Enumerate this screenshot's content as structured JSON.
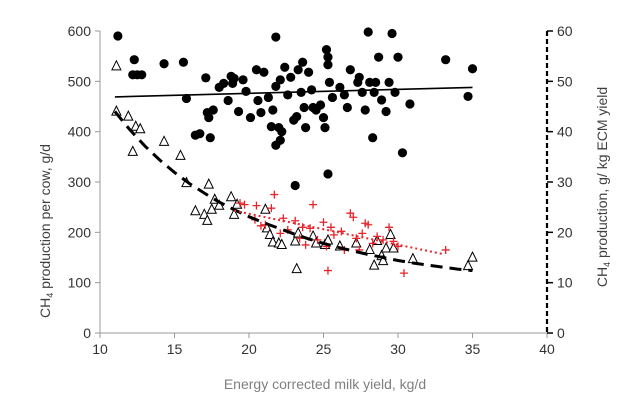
{
  "chart_data": {
    "type": "scatter",
    "xlabel": "Energy corrected milk yield, kg/d",
    "ylabel_left_parts": [
      "CH",
      "4",
      " production  per cow, g/d"
    ],
    "ylabel_right_parts": [
      "CH",
      "4",
      " production, g/ kg ECM yield"
    ],
    "xlim": [
      10,
      40
    ],
    "ylim_left": [
      0,
      600
    ],
    "ylim_right": [
      0,
      60
    ],
    "x_ticks": [
      "10",
      "15",
      "20",
      "25",
      "30",
      "35",
      "40"
    ],
    "y_left_ticks": [
      "0",
      "100",
      "200",
      "300",
      "400",
      "500",
      "600"
    ],
    "y_right_ticks": [
      "0",
      "10",
      "20",
      "30",
      "40",
      "50",
      "60"
    ],
    "grid": false,
    "series": [
      {
        "axis": "left",
        "marker": "filled-circle",
        "color": "#000000",
        "points": [
          [
            11.2,
            590
          ],
          [
            12.3,
            543
          ],
          [
            12.2,
            513
          ],
          [
            12.5,
            513
          ],
          [
            12.8,
            513
          ],
          [
            14.3,
            535
          ],
          [
            15.6,
            538
          ],
          [
            15.8,
            466
          ],
          [
            16.4,
            393
          ],
          [
            16.7,
            396
          ],
          [
            17.1,
            507
          ],
          [
            17.2,
            438
          ],
          [
            17.3,
            428
          ],
          [
            17.4,
            388
          ],
          [
            17.6,
            443
          ],
          [
            18.0,
            488
          ],
          [
            18.3,
            496
          ],
          [
            18.6,
            462
          ],
          [
            18.8,
            510
          ],
          [
            18.9,
            496
          ],
          [
            19.0,
            506
          ],
          [
            19.3,
            440
          ],
          [
            19.6,
            503
          ],
          [
            19.8,
            480
          ],
          [
            20.1,
            428
          ],
          [
            20.5,
            523
          ],
          [
            20.6,
            462
          ],
          [
            20.8,
            438
          ],
          [
            21.0,
            518
          ],
          [
            21.3,
            468
          ],
          [
            21.6,
            443
          ],
          [
            21.5,
            410
          ],
          [
            21.8,
            373
          ],
          [
            21.8,
            588
          ],
          [
            21.8,
            490
          ],
          [
            22.0,
            408
          ],
          [
            22.1,
            383
          ],
          [
            22.2,
            400
          ],
          [
            22.1,
            503
          ],
          [
            22.4,
            528
          ],
          [
            22.6,
            473
          ],
          [
            22.8,
            508
          ],
          [
            23.0,
            423
          ],
          [
            23.1,
            293
          ],
          [
            23.2,
            430
          ],
          [
            23.3,
            523
          ],
          [
            23.5,
            478
          ],
          [
            23.6,
            538
          ],
          [
            23.7,
            448
          ],
          [
            23.8,
            408
          ],
          [
            24.0,
            518
          ],
          [
            24.2,
            483
          ],
          [
            24.3,
            448
          ],
          [
            24.5,
            443
          ],
          [
            24.8,
            453
          ],
          [
            25.0,
            428
          ],
          [
            25.1,
            408
          ],
          [
            25.2,
            563
          ],
          [
            25.3,
            548
          ],
          [
            25.3,
            533
          ],
          [
            25.4,
            498
          ],
          [
            25.6,
            468
          ],
          [
            25.3,
            316
          ],
          [
            26.1,
            488
          ],
          [
            26.4,
            473
          ],
          [
            26.6,
            448
          ],
          [
            26.8,
            523
          ],
          [
            27.3,
            498
          ],
          [
            27.4,
            508
          ],
          [
            27.6,
            478
          ],
          [
            27.8,
            443
          ],
          [
            28.0,
            598
          ],
          [
            28.1,
            498
          ],
          [
            28.3,
            388
          ],
          [
            28.4,
            478
          ],
          [
            28.5,
            498
          ],
          [
            28.7,
            548
          ],
          [
            28.9,
            463
          ],
          [
            29.2,
            440
          ],
          [
            29.4,
            498
          ],
          [
            29.6,
            595
          ],
          [
            29.8,
            478
          ],
          [
            30.0,
            548
          ],
          [
            30.3,
            358
          ],
          [
            30.8,
            455
          ],
          [
            33.2,
            543
          ],
          [
            34.7,
            470
          ],
          [
            35.0,
            525
          ]
        ]
      },
      {
        "axis": "left",
        "type": "line",
        "style": "solid",
        "color": "#000000",
        "points": [
          [
            11,
            469
          ],
          [
            35,
            488
          ]
        ]
      },
      {
        "axis": "right",
        "marker": "open-triangle",
        "color": "#000000",
        "points": [
          [
            11.1,
            53
          ],
          [
            11.1,
            44
          ],
          [
            11.9,
            43
          ],
          [
            12.2,
            36
          ],
          [
            12.4,
            41
          ],
          [
            12.7,
            40.5
          ],
          [
            14.3,
            38
          ],
          [
            15.4,
            35.2
          ],
          [
            15.8,
            29.8
          ],
          [
            16.4,
            24.2
          ],
          [
            17.0,
            23.5
          ],
          [
            17.2,
            22.3
          ],
          [
            17.3,
            29.5
          ],
          [
            17.5,
            24.5
          ],
          [
            17.7,
            26.5
          ],
          [
            18.0,
            25.3
          ],
          [
            18.8,
            27
          ],
          [
            19.0,
            23.5
          ],
          [
            19.2,
            25.5
          ],
          [
            21.1,
            24.5
          ],
          [
            21.2,
            20.8
          ],
          [
            21.4,
            19.5
          ],
          [
            21.6,
            18
          ],
          [
            22.0,
            17.8
          ],
          [
            22.2,
            17.5
          ],
          [
            23.1,
            18.2
          ],
          [
            23.2,
            12.7
          ],
          [
            23.3,
            19.8
          ],
          [
            24.3,
            19.2
          ],
          [
            24.5,
            17.8
          ],
          [
            25.1,
            17.5
          ],
          [
            25.3,
            18.4
          ],
          [
            26.1,
            17.2
          ],
          [
            27.2,
            17.8
          ],
          [
            28.1,
            16.5
          ],
          [
            28.4,
            13.4
          ],
          [
            28.6,
            18.3
          ],
          [
            28.9,
            15.3
          ],
          [
            29.0,
            14.3
          ],
          [
            29.2,
            16.8
          ],
          [
            29.5,
            19.5
          ],
          [
            29.7,
            16.8
          ],
          [
            31.0,
            14.7
          ],
          [
            34.7,
            13.3
          ],
          [
            35.0,
            15
          ]
        ]
      },
      {
        "axis": "right",
        "marker": "plus",
        "color": "#e8242a",
        "points": [
          [
            19.4,
            25.8
          ],
          [
            19.7,
            25.5
          ],
          [
            20.4,
            22.5
          ],
          [
            20.5,
            25.3
          ],
          [
            20.8,
            21.3
          ],
          [
            21.1,
            21.5
          ],
          [
            21.5,
            24.8
          ],
          [
            21.7,
            27.5
          ],
          [
            22.1,
            19.8
          ],
          [
            22.3,
            22.8
          ],
          [
            22.6,
            20.5
          ],
          [
            23.1,
            22.3
          ],
          [
            23.4,
            18.8
          ],
          [
            23.6,
            21
          ],
          [
            23.8,
            17.5
          ],
          [
            24.1,
            20.8
          ],
          [
            24.3,
            25.5
          ],
          [
            24.6,
            18.5
          ],
          [
            25.0,
            22
          ],
          [
            25.2,
            17.2
          ],
          [
            25.3,
            12.4
          ],
          [
            25.5,
            21
          ],
          [
            25.7,
            19.5
          ],
          [
            26.2,
            20.2
          ],
          [
            26.4,
            16.5
          ],
          [
            26.8,
            23.8
          ],
          [
            27.0,
            23
          ],
          [
            27.2,
            18.8
          ],
          [
            27.4,
            16.5
          ],
          [
            27.6,
            19.8
          ],
          [
            27.8,
            21.8
          ],
          [
            28.0,
            21.5
          ],
          [
            28.3,
            17.8
          ],
          [
            28.6,
            19.2
          ],
          [
            29.0,
            18.5
          ],
          [
            29.4,
            21
          ],
          [
            29.7,
            18.2
          ],
          [
            30.0,
            17.2
          ],
          [
            30.4,
            11.9
          ],
          [
            33.2,
            16.5
          ]
        ]
      },
      {
        "axis": "right",
        "type": "line",
        "style": "dashed",
        "color": "#000000",
        "points": [
          [
            11,
            44
          ],
          [
            12,
            40.4
          ],
          [
            13,
            37.2
          ],
          [
            14,
            34.4
          ],
          [
            15,
            31.9
          ],
          [
            16,
            29.7
          ],
          [
            17,
            27.8
          ],
          [
            18,
            26
          ],
          [
            19,
            24.5
          ],
          [
            20,
            23.1
          ],
          [
            21,
            21.9
          ],
          [
            22,
            20.8
          ],
          [
            23,
            19.7
          ],
          [
            24,
            18.7
          ],
          [
            25,
            17.8
          ],
          [
            26,
            17
          ],
          [
            27,
            16.3
          ],
          [
            28,
            15.6
          ],
          [
            29,
            15
          ],
          [
            30,
            14.4
          ],
          [
            31,
            13.9
          ],
          [
            32,
            13.5
          ],
          [
            33,
            13.1
          ],
          [
            34,
            12.7
          ],
          [
            35,
            12.4
          ]
        ]
      },
      {
        "axis": "right",
        "type": "line",
        "style": "dotted",
        "color": "#e8242a",
        "points": [
          [
            19,
            24.3
          ],
          [
            33,
            15.7
          ]
        ]
      }
    ]
  }
}
